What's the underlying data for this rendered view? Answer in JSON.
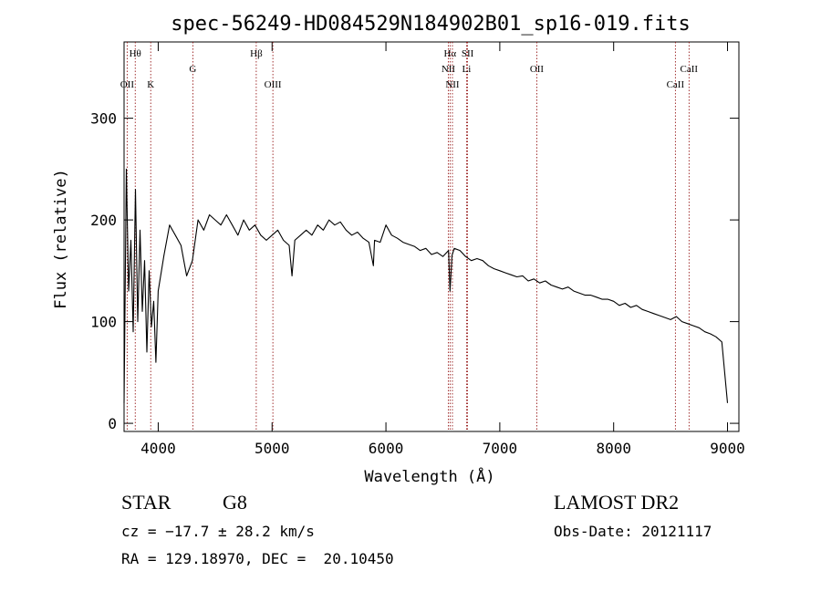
{
  "chart_data": {
    "type": "line",
    "title": "spec-56249-HD084529N184902B01_sp16-019.fits",
    "xlabel": "Wavelength (Å)",
    "ylabel": "Flux (relative)",
    "xlim": [
      3700,
      9100
    ],
    "ylim": [
      -8,
      375
    ],
    "x_ticks": [
      4000,
      5000,
      6000,
      7000,
      8000,
      9000
    ],
    "y_ticks": [
      0,
      100,
      200,
      300
    ],
    "line_color": "#000000",
    "marker_color": "#8b0000",
    "series": [
      {
        "x": [
          3700,
          3720,
          3740,
          3760,
          3780,
          3800,
          3820,
          3840,
          3860,
          3880,
          3900,
          3920,
          3940,
          3960,
          3980,
          4000,
          4050,
          4100,
          4150,
          4200,
          4250,
          4300,
          4350,
          4400,
          4450,
          4500,
          4550,
          4600,
          4650,
          4700,
          4750,
          4800,
          4850,
          4900,
          4950,
          5000,
          5050,
          5100,
          5150,
          5175,
          5200,
          5250,
          5300,
          5350,
          5400,
          5450,
          5500,
          5550,
          5600,
          5650,
          5700,
          5750,
          5800,
          5850,
          5890,
          5900,
          5950,
          6000,
          6050,
          6100,
          6150,
          6200,
          6250,
          6300,
          6350,
          6400,
          6450,
          6500,
          6550,
          6563,
          6580,
          6600,
          6650,
          6700,
          6750,
          6800,
          6850,
          6900,
          6950,
          7000,
          7050,
          7100,
          7150,
          7200,
          7250,
          7300,
          7350,
          7400,
          7450,
          7500,
          7550,
          7600,
          7650,
          7700,
          7750,
          7800,
          7850,
          7900,
          7950,
          8000,
          8050,
          8100,
          8150,
          8200,
          8250,
          8300,
          8350,
          8400,
          8450,
          8500,
          8550,
          8600,
          8650,
          8700,
          8750,
          8800,
          8850,
          8900,
          8950,
          9000
        ],
        "y": [
          20,
          250,
          130,
          180,
          90,
          230,
          100,
          190,
          110,
          160,
          70,
          150,
          95,
          120,
          60,
          130,
          165,
          195,
          185,
          175,
          145,
          160,
          200,
          190,
          205,
          200,
          195,
          205,
          195,
          185,
          200,
          190,
          195,
          185,
          180,
          185,
          190,
          180,
          175,
          145,
          180,
          185,
          190,
          185,
          195,
          190,
          200,
          195,
          198,
          190,
          185,
          188,
          182,
          178,
          155,
          180,
          178,
          195,
          185,
          182,
          178,
          176,
          174,
          170,
          172,
          166,
          168,
          164,
          170,
          130,
          165,
          172,
          170,
          164,
          160,
          162,
          160,
          155,
          152,
          150,
          148,
          146,
          144,
          145,
          140,
          142,
          138,
          140,
          136,
          134,
          132,
          134,
          130,
          128,
          126,
          126,
          124,
          122,
          122,
          120,
          116,
          118,
          114,
          116,
          112,
          110,
          108,
          106,
          104,
          102,
          105,
          100,
          98,
          96,
          94,
          90,
          88,
          85,
          80,
          20
        ]
      }
    ],
    "lines": [
      {
        "label": "Hθ",
        "wavelength": 3798,
        "row": 1
      },
      {
        "label": "OII",
        "wavelength": 3727,
        "row": 3
      },
      {
        "label": "K",
        "wavelength": 3934,
        "row": 3
      },
      {
        "label": "G",
        "wavelength": 4304,
        "row": 2
      },
      {
        "label": "Hβ",
        "wavelength": 4861,
        "row": 1
      },
      {
        "label": "OIII",
        "wavelength": 5007,
        "row": 3
      },
      {
        "label": "Hα",
        "wavelength": 6563,
        "row": 1
      },
      {
        "label": "SII",
        "wavelength": 6717,
        "row": 1
      },
      {
        "label": "NII",
        "wavelength": 6548,
        "row": 2
      },
      {
        "label": "Li",
        "wavelength": 6708,
        "row": 2
      },
      {
        "label": "NII",
        "wavelength": 6584,
        "row": 3
      },
      {
        "label": "OII",
        "wavelength": 7325,
        "row": 2
      },
      {
        "label": "CaII",
        "wavelength": 8542,
        "row": 3
      },
      {
        "label": "CaII",
        "wavelength": 8662,
        "row": 2
      }
    ]
  },
  "info": {
    "class": "STAR",
    "subclass": "G8",
    "survey": "LAMOST DR2",
    "cz": "cz = −17.7 ± 28.2 km/s",
    "obs_date": "Obs-Date: 20121117",
    "coords": "RA = 129.18970, DEC =  20.10450"
  }
}
